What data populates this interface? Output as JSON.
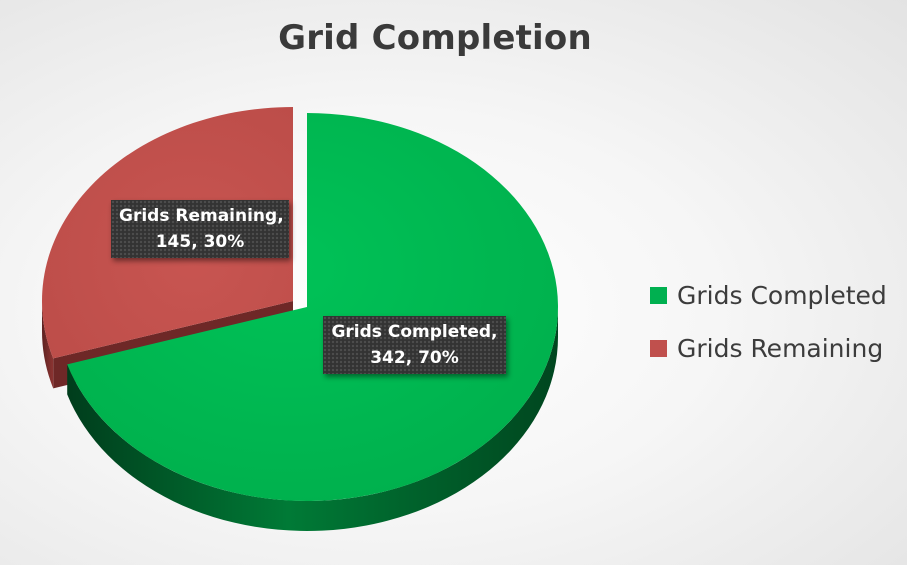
{
  "chart_data": {
    "type": "pie",
    "title": "Grid Completion",
    "categories": [
      "Grids Completed",
      "Grids Remaining"
    ],
    "values": [
      342,
      145
    ],
    "percent_labels": [
      "70%",
      "30%"
    ],
    "data_labels": [
      {
        "line1": "Grids Completed,",
        "line2": "342, 70%"
      },
      {
        "line1": "Grids Remaining,",
        "line2": "145, 30%"
      }
    ],
    "colors": [
      "#00b050",
      "#c0504d"
    ],
    "exploded_slice": "Grids Remaining",
    "style": "3d",
    "legend": {
      "position": "right"
    }
  }
}
